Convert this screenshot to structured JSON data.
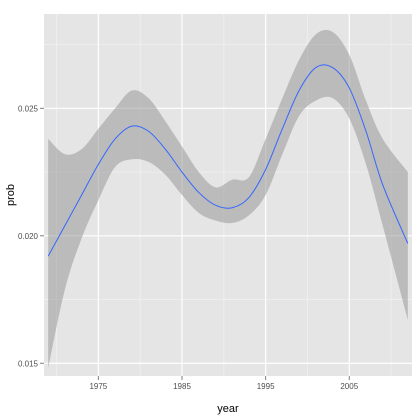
{
  "chart_data": {
    "type": "line",
    "xlabel": "year",
    "ylabel": "prob",
    "xlim": [
      1968.5,
      2012.5
    ],
    "ylim": [
      0.0145,
      0.0287
    ],
    "x_ticks": [
      1975,
      1985,
      1995,
      2005
    ],
    "x_tick_labels": [
      "1975",
      "1985",
      "1995",
      "2005"
    ],
    "y_ticks": [
      0.015,
      0.02,
      0.025
    ],
    "y_tick_labels": [
      "0.015",
      "0.020",
      "0.025"
    ],
    "grid": true,
    "colors": {
      "panel": "#e5e5e5",
      "grid_major": "#ffffff",
      "grid_minor": "#f2f2f2",
      "line": "#3366ff",
      "ribbon": "#999999"
    },
    "series": [
      {
        "style": "smooth-with-confidence-band",
        "x": [
          1969,
          1971,
          1973,
          1975,
          1977,
          1979,
          1981,
          1983,
          1985,
          1987,
          1989,
          1991,
          1993,
          1995,
          1997,
          1999,
          2001,
          2003,
          2005,
          2007,
          2009,
          2012
        ],
        "y": [
          0.0192,
          0.0204,
          0.0216,
          0.0228,
          0.0238,
          0.0243,
          0.0241,
          0.0234,
          0.0225,
          0.0217,
          0.0212,
          0.0211,
          0.0215,
          0.0226,
          0.0242,
          0.0257,
          0.0266,
          0.0266,
          0.0258,
          0.0241,
          0.022,
          0.0197
        ],
        "lower": [
          0.0148,
          0.0179,
          0.0199,
          0.0214,
          0.0227,
          0.023,
          0.0229,
          0.0224,
          0.0216,
          0.0209,
          0.0206,
          0.0205,
          0.0208,
          0.0216,
          0.0232,
          0.0247,
          0.0253,
          0.0254,
          0.0246,
          0.0228,
          0.0204,
          0.0167
        ],
        "upper": [
          0.0238,
          0.0232,
          0.0234,
          0.0242,
          0.025,
          0.0257,
          0.0254,
          0.0245,
          0.0235,
          0.0225,
          0.0219,
          0.0222,
          0.0223,
          0.0238,
          0.0254,
          0.0269,
          0.0279,
          0.028,
          0.0271,
          0.0253,
          0.0238,
          0.0225
        ]
      }
    ]
  }
}
